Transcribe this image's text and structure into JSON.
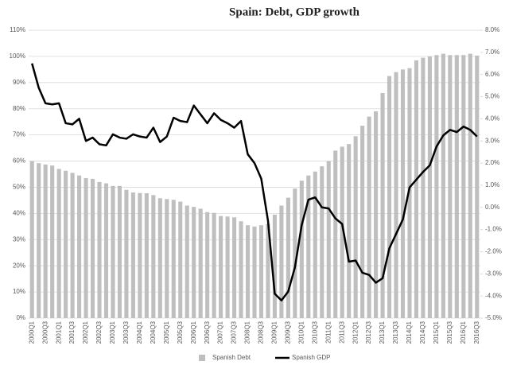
{
  "chart_data": {
    "type": "bar-line",
    "title": "Spain: Debt, GDP growth",
    "categories": [
      "2000Q1",
      null,
      "2000Q3",
      null,
      "2001Q1",
      null,
      "2001Q3",
      null,
      "2002Q1",
      null,
      "2002Q3",
      null,
      "2003Q1",
      null,
      "2003Q3",
      null,
      "2004Q1",
      null,
      "2004Q3",
      null,
      "2005Q1",
      null,
      "2005Q3",
      null,
      "2006Q1",
      null,
      "2006Q3",
      null,
      "2007Q1",
      null,
      "2007Q3",
      null,
      "2008Q1",
      null,
      "2008Q3",
      null,
      "2009Q1",
      null,
      "2009Q3",
      null,
      "2010Q1",
      null,
      "2010Q3",
      null,
      "2011Q1",
      null,
      "2011Q3",
      null,
      "2012Q1",
      null,
      "2012Q3",
      null,
      "2013Q1",
      null,
      "2013Q3",
      null,
      "2014Q1",
      null,
      "2014Q3",
      null,
      "2015Q1",
      null,
      "2015Q3",
      null,
      "2016Q1",
      null,
      "2016Q3"
    ],
    "series": [
      {
        "name": "Spanish Debt",
        "color": "#bfbfbf",
        "kind": "bar",
        "values": [
          60,
          59.2,
          58.7,
          58.3,
          57,
          56.3,
          55.5,
          54.5,
          53.5,
          53.2,
          52,
          51.5,
          50.5,
          50.5,
          49,
          48,
          47.8,
          47.7,
          47,
          45.8,
          45.5,
          45.2,
          44.5,
          43,
          42.5,
          41.8,
          40.5,
          40.2,
          39,
          38.8,
          38.5,
          37,
          35.5,
          35,
          35.5,
          36,
          39.5,
          43,
          46,
          49.5,
          52.5,
          54.5,
          56,
          58,
          60,
          64,
          65.5,
          66.5,
          69.5,
          73.5,
          77,
          79,
          86,
          92.5,
          94,
          95,
          95.5,
          98.5,
          99.5,
          100,
          100.5,
          101,
          100.5,
          100.5,
          100.5,
          101,
          100.3
        ]
      },
      {
        "name": "Spanish GDP",
        "color": "#000000",
        "kind": "line",
        "axis": "y2",
        "values": [
          6.5,
          5.4,
          4.7,
          4.65,
          4.7,
          3.8,
          3.75,
          4.0,
          3.0,
          3.15,
          2.85,
          2.8,
          3.3,
          3.15,
          3.1,
          3.3,
          3.2,
          3.15,
          3.6,
          2.95,
          3.2,
          4.05,
          3.9,
          3.85,
          4.6,
          4.2,
          3.8,
          4.25,
          3.95,
          3.8,
          3.6,
          3.9,
          2.4,
          2.0,
          1.3,
          -0.6,
          -3.9,
          -4.2,
          -3.8,
          -2.7,
          -0.8,
          0.35,
          0.45,
          0.0,
          -0.05,
          -0.5,
          -0.75,
          -2.45,
          -2.4,
          -2.95,
          -3.05,
          -3.4,
          -3.2,
          -1.85,
          -1.2,
          -0.55,
          0.9,
          1.25,
          1.6,
          1.9,
          2.75,
          3.25,
          3.5,
          3.4,
          3.65,
          3.5,
          3.2
        ]
      }
    ],
    "ylim": [
      0,
      110
    ],
    "yticks": [
      {
        "value": 0,
        "label": "0%"
      },
      {
        "value": 10,
        "label": "10%"
      },
      {
        "value": 20,
        "label": "20%"
      },
      {
        "value": 30,
        "label": "30%"
      },
      {
        "value": 40,
        "label": "40%"
      },
      {
        "value": 50,
        "label": "50%"
      },
      {
        "value": 60,
        "label": "60%"
      },
      {
        "value": 70,
        "label": "70%"
      },
      {
        "value": 80,
        "label": "80%"
      },
      {
        "value": 90,
        "label": "90%"
      },
      {
        "value": 100,
        "label": "100%"
      },
      {
        "value": 110,
        "label": "110%"
      }
    ],
    "y2lim": [
      -5,
      8
    ],
    "y2ticks": [
      {
        "value": -5,
        "label": "-5.0%"
      },
      {
        "value": -4,
        "label": "-4.0%"
      },
      {
        "value": -3,
        "label": "-3.0%"
      },
      {
        "value": -2,
        "label": "-2.0%"
      },
      {
        "value": -1,
        "label": "-1.0%"
      },
      {
        "value": 0,
        "label": "0.0%"
      },
      {
        "value": 1,
        "label": "1.0%"
      },
      {
        "value": 2,
        "label": "2.0%"
      },
      {
        "value": 3,
        "label": "3.0%"
      },
      {
        "value": 4,
        "label": "4.0%"
      },
      {
        "value": 5,
        "label": "5.0%"
      },
      {
        "value": 6,
        "label": "6.0%"
      },
      {
        "value": 7,
        "label": "7.0%"
      },
      {
        "value": 8,
        "label": "8.0%"
      }
    ],
    "grid": true,
    "legend": "bottom"
  }
}
